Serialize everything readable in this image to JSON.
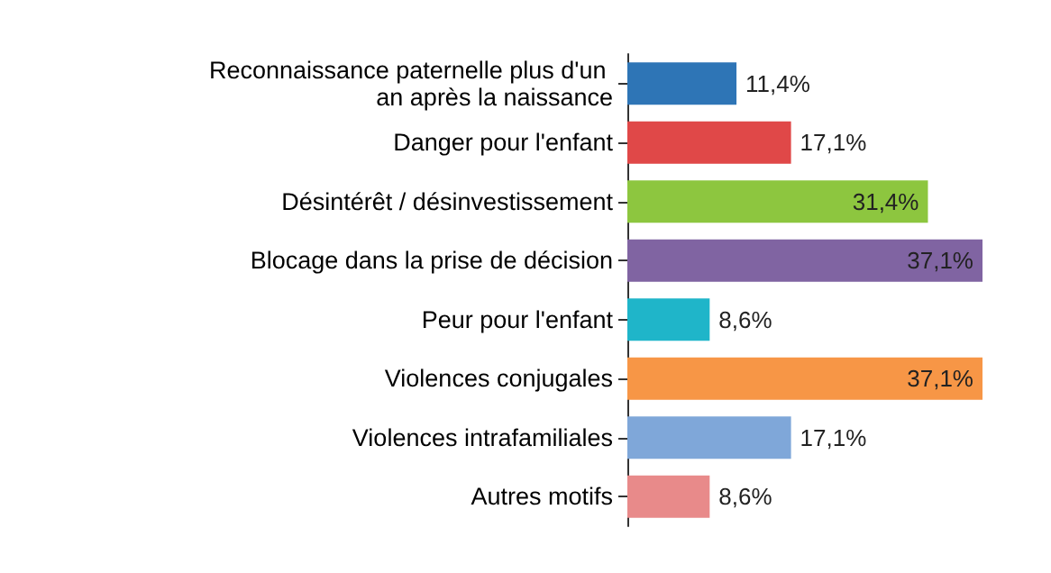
{
  "chart_data": {
    "type": "bar",
    "orientation": "horizontal",
    "categories": [
      "Reconnaissance paternelle plus d'un an après la naissance",
      "Danger pour l'enfant",
      "Désintérêt / désinvestissement",
      "Blocage dans la prise de décision",
      "Peur pour l'enfant",
      "Violences conjugales",
      "Violences intrafamiliales",
      "Autres motifs"
    ],
    "values": [
      11.4,
      17.1,
      31.4,
      37.1,
      8.6,
      37.1,
      17.1,
      8.6
    ],
    "value_labels": [
      "11,4%",
      "17,1%",
      "31,4%",
      "37,1%",
      "8,6%",
      "37,1%",
      "17,1%",
      "8,6%"
    ],
    "colors": [
      "#2e75b6",
      "#e04848",
      "#8dc63f",
      "#8064a2",
      "#1fb5c9",
      "#f79646",
      "#7fa7d9",
      "#e88a8a"
    ]
  }
}
